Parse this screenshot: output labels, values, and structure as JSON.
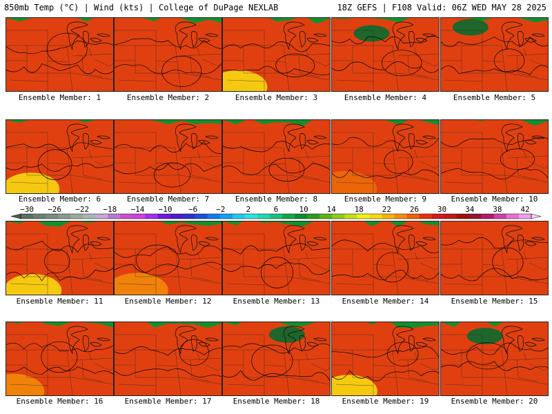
{
  "header": {
    "left": "850mb Temp (°C) | Wind (kts) | College of DuPage NEXLAB",
    "right": "18Z GEFS | F108 Valid: 06Z WED MAY 28 2025"
  },
  "colorbar": {
    "ticks": [
      "−30",
      "−26",
      "−22",
      "−18",
      "−14",
      "−10",
      "−6",
      "−2",
      "2",
      "6",
      "10",
      "14",
      "18",
      "22",
      "26",
      "30",
      "34",
      "38",
      "42"
    ],
    "colors": [
      "#5a7060",
      "#6a8070",
      "#7a8a80",
      "#8a9a90",
      "#9aaaa0",
      "#aab5ba",
      "#c6a8d6",
      "#b878d8",
      "#cc4ec8",
      "#d040e0",
      "#a030e8",
      "#7018e0",
      "#5018c8",
      "#3030c8",
      "#1850e0",
      "#1478ee",
      "#10a0f8",
      "#20c8f0",
      "#30e0e0",
      "#20d8b0",
      "#18c080",
      "#12a848",
      "#0c8c2c",
      "#2e9a22",
      "#5ab418",
      "#8ccc18",
      "#c0e018",
      "#f0f018",
      "#f8d812",
      "#f8b40c",
      "#f88c0a",
      "#f06008",
      "#e83010",
      "#d81818",
      "#c01818",
      "#a01010",
      "#901830",
      "#b01e6a",
      "#d040a0",
      "#e870d0",
      "#f0a0f0"
    ]
  },
  "panels": [
    {
      "label": "Ensemble Member: 1",
      "warmth": 0.45
    },
    {
      "label": "Ensemble Member: 2",
      "warmth": 0.5
    },
    {
      "label": "Ensemble Member: 3",
      "warmth": 0.62
    },
    {
      "label": "Ensemble Member: 4",
      "warmth": 0.32
    },
    {
      "label": "Ensemble Member: 5",
      "warmth": 0.42
    },
    {
      "label": "Ensemble Member: 6",
      "warmth": 0.58
    },
    {
      "label": "Ensemble Member: 7",
      "warmth": 0.5
    },
    {
      "label": "Ensemble Member: 8",
      "warmth": 0.45
    },
    {
      "label": "Ensemble Member: 9",
      "warmth": 0.8
    },
    {
      "label": "Ensemble Member: 10",
      "warmth": 0.52
    },
    {
      "label": "Ensemble Member: 11",
      "warmth": 0.6
    },
    {
      "label": "Ensemble Member: 12",
      "warmth": 0.75
    },
    {
      "label": "Ensemble Member: 13",
      "warmth": 0.48
    },
    {
      "label": "Ensemble Member: 14",
      "warmth": 0.45
    },
    {
      "label": "Ensemble Member: 15",
      "warmth": 0.48
    },
    {
      "label": "Ensemble Member: 16",
      "warmth": 0.72
    },
    {
      "label": "Ensemble Member: 17",
      "warmth": 0.55
    },
    {
      "label": "Ensemble Member: 18",
      "warmth": 0.42
    },
    {
      "label": "Ensemble Member: 19",
      "warmth": 0.58
    },
    {
      "label": "Ensemble Member: 20",
      "warmth": 0.3
    }
  ]
}
